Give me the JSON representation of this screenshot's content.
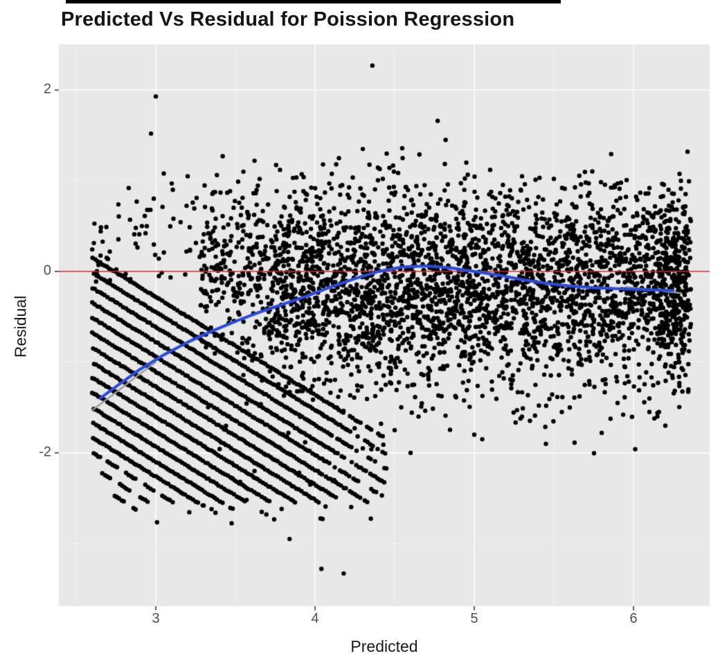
{
  "chart_data": {
    "type": "scatter",
    "title": "Predicted Vs Residual for Poission Regression",
    "xlabel": "Predicted",
    "ylabel": "Residual",
    "xlim": [
      2.391,
      6.478
    ],
    "ylim": [
      -3.69,
      2.504
    ],
    "xticks": [
      3,
      4,
      5,
      6
    ],
    "xtick_labels": [
      "3",
      "4",
      "5",
      "6"
    ],
    "yticks": [
      -2,
      0,
      2
    ],
    "ytick_labels": [
      "-2",
      "0",
      "2"
    ],
    "x_minor_ticks": [
      2.5,
      3.5,
      4.5,
      5.5
    ],
    "y_minor_ticks": [
      -3,
      -1,
      1
    ],
    "grid": true,
    "legend": "none",
    "panel_bg": "#E8E8E8",
    "grid_major_color": "#FFFFFF",
    "point": {
      "color": "#000000",
      "radius": 3.2
    },
    "reference_line": {
      "y": 0,
      "color": "#CC2A2A",
      "width": 1.5
    },
    "smooth_line": {
      "color": "#2A4BDB",
      "width": 4.2,
      "points": [
        [
          2.65,
          -1.4
        ],
        [
          2.75,
          -1.27
        ],
        [
          2.9,
          -1.08
        ],
        [
          3.05,
          -0.92
        ],
        [
          3.2,
          -0.78
        ],
        [
          3.35,
          -0.66
        ],
        [
          3.5,
          -0.55
        ],
        [
          3.65,
          -0.45
        ],
        [
          3.8,
          -0.36
        ],
        [
          3.95,
          -0.27
        ],
        [
          4.1,
          -0.17
        ],
        [
          4.25,
          -0.08
        ],
        [
          4.4,
          0.0
        ],
        [
          4.55,
          0.05
        ],
        [
          4.7,
          0.06
        ],
        [
          4.85,
          0.04
        ],
        [
          5.0,
          0.0
        ],
        [
          5.15,
          -0.04
        ],
        [
          5.3,
          -0.09
        ],
        [
          5.45,
          -0.13
        ],
        [
          5.6,
          -0.16
        ],
        [
          5.75,
          -0.18
        ],
        [
          5.9,
          -0.19
        ],
        [
          6.05,
          -0.2
        ],
        [
          6.25,
          -0.21
        ]
      ]
    },
    "secondary_smooth": {
      "color": "#9A9A9A",
      "width": 2.4,
      "segments": [
        [
          [
            2.6,
            -1.53
          ],
          [
            2.73,
            -1.36
          ],
          [
            2.87,
            -1.17
          ],
          [
            3.0,
            -1.0
          ]
        ],
        [
          [
            5.95,
            -0.17
          ],
          [
            6.1,
            -0.2
          ],
          [
            6.3,
            -0.24
          ]
        ]
      ]
    },
    "outliers": {
      "top": [
        [
          2.83,
          0.92
        ],
        [
          2.88,
          0.77
        ],
        [
          2.97,
          1.52
        ],
        [
          3.0,
          1.93
        ],
        [
          3.05,
          1.08
        ],
        [
          3.1,
          0.97
        ],
        [
          3.2,
          1.05
        ],
        [
          3.42,
          1.27
        ],
        [
          3.55,
          1.1
        ],
        [
          3.62,
          1.22
        ],
        [
          3.78,
          1.12
        ],
        [
          4.05,
          1.18
        ],
        [
          4.15,
          1.25
        ],
        [
          4.3,
          1.35
        ],
        [
          4.36,
          2.27
        ],
        [
          4.45,
          1.3
        ],
        [
          4.55,
          1.25
        ],
        [
          4.77,
          1.66
        ],
        [
          4.82,
          1.45
        ],
        [
          4.95,
          1.2
        ],
        [
          5.1,
          1.12
        ],
        [
          5.3,
          1.05
        ],
        [
          5.5,
          1.02
        ],
        [
          5.7,
          0.98
        ],
        [
          5.9,
          0.97
        ],
        [
          6.1,
          0.92
        ],
        [
          6.22,
          0.9
        ]
      ],
      "bottom": [
        [
          3.3,
          -2.58
        ],
        [
          3.35,
          -2.62
        ],
        [
          3.48,
          -2.28
        ],
        [
          3.53,
          -2.32
        ],
        [
          3.57,
          -2.52
        ],
        [
          3.62,
          -2.2
        ],
        [
          3.84,
          -2.95
        ],
        [
          3.9,
          -2.22
        ],
        [
          3.97,
          -2.35
        ],
        [
          4.04,
          -3.28
        ],
        [
          4.18,
          -3.33
        ],
        [
          4.12,
          -2.3
        ],
        [
          4.3,
          -1.95
        ],
        [
          4.5,
          -1.75
        ],
        [
          4.6,
          -2.0
        ],
        [
          4.65,
          -1.6
        ],
        [
          5.0,
          -1.8
        ],
        [
          5.05,
          -1.85
        ],
        [
          5.3,
          -1.6
        ],
        [
          5.45,
          -1.9
        ],
        [
          5.55,
          -1.55
        ],
        [
          5.6,
          -1.5
        ],
        [
          5.9,
          -1.45
        ],
        [
          6.1,
          -1.55
        ],
        [
          6.15,
          -1.6
        ],
        [
          6.2,
          -1.7
        ]
      ]
    },
    "scatter_model": {
      "seed": 42,
      "approx_total_points": 6000,
      "cloud": {
        "n": 3600,
        "x_min": 3.28,
        "x_max": 6.36,
        "y_mean": -0.12,
        "y_sd": 0.52
      },
      "right_edge_cluster": {
        "n": 160,
        "x_min": 6.16,
        "x_max": 6.32,
        "y_mean": -0.22,
        "y_sd": 0.5
      },
      "stripes": {
        "count": 18,
        "x0": 2.6,
        "intercept_start": 0.15,
        "intercept_step": 0.165,
        "slope": -1.08,
        "x_step": 0.0145,
        "x_max": 4.45,
        "y_min": -2.55
      },
      "left_scatter": {
        "n": 95,
        "x_min": 2.6,
        "x_max": 3.5,
        "y_min": -0.12,
        "y_max": 0.95
      }
    }
  }
}
